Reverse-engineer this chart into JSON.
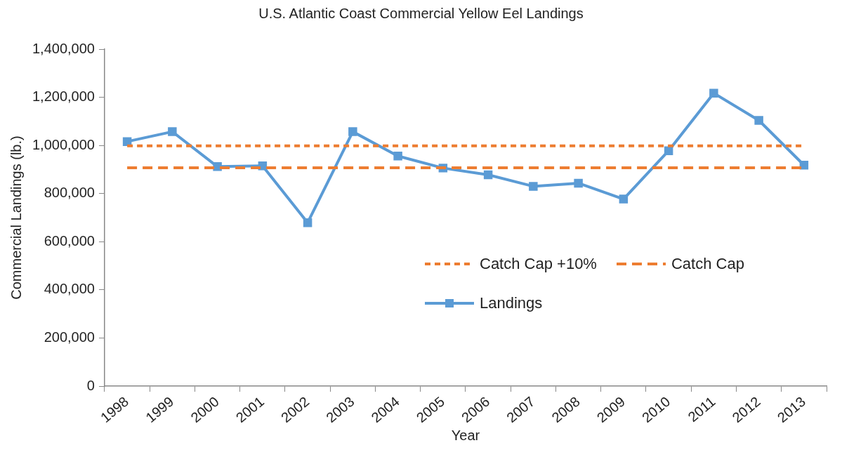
{
  "chart_data": {
    "type": "line",
    "title": "U.S. Atlantic Coast Commercial Yellow Eel Landings",
    "xlabel": "Year",
    "ylabel": "Commercial Landings (lb.)",
    "categories": [
      "1998",
      "1999",
      "2000",
      "2001",
      "2002",
      "2003",
      "2004",
      "2005",
      "2006",
      "2007",
      "2008",
      "2009",
      "2010",
      "2011",
      "2012",
      "2013"
    ],
    "series": [
      {
        "name": "Catch Cap +10%",
        "color": "#ed7d31",
        "line_style": "dotted",
        "marker": "none",
        "values": [
          998000,
          998000,
          998000,
          998000,
          998000,
          998000,
          998000,
          998000,
          998000,
          998000,
          998000,
          998000,
          998000,
          998000,
          998000,
          998000
        ]
      },
      {
        "name": "Catch Cap",
        "color": "#ed7d31",
        "line_style": "dashed",
        "marker": "none",
        "values": [
          907000,
          907000,
          907000,
          907000,
          907000,
          907000,
          907000,
          907000,
          907000,
          907000,
          907000,
          907000,
          907000,
          907000,
          907000,
          907000
        ]
      },
      {
        "name": "Landings",
        "color": "#5b9bd5",
        "line_style": "solid",
        "marker": "square",
        "values": [
          1016000,
          1057000,
          912000,
          915000,
          679000,
          1057000,
          956000,
          906000,
          878000,
          830000,
          843000,
          777000,
          978000,
          1217000,
          1104000,
          918000
        ]
      }
    ],
    "ylim": [
      0,
      1400000
    ],
    "yticks": [
      {
        "value": 0,
        "label": "0"
      },
      {
        "value": 200000,
        "label": "200,000"
      },
      {
        "value": 400000,
        "label": "400,000"
      },
      {
        "value": 600000,
        "label": "600,000"
      },
      {
        "value": 800000,
        "label": "800,000"
      },
      {
        "value": 1000000,
        "label": "1,000,000"
      },
      {
        "value": 1200000,
        "label": "1,200,000"
      },
      {
        "value": 1400000,
        "label": "1,400,000"
      }
    ],
    "grid": false,
    "legend": "bottom right"
  }
}
